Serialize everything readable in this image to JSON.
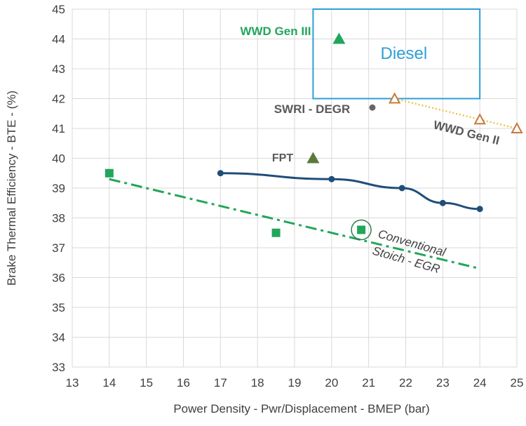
{
  "chart_data": {
    "type": "scatter",
    "xlabel": "Power Density - Pwr/Displacement - BMEP (bar)",
    "ylabel": "Brake Thermal Efficiency - BTE - (%)",
    "xlim": [
      13,
      25
    ],
    "ylim": [
      33,
      45
    ],
    "x_ticks": [
      "13",
      "14",
      "15",
      "16",
      "17",
      "18",
      "19",
      "20",
      "21",
      "22",
      "23",
      "24",
      "25"
    ],
    "y_ticks": [
      "33",
      "34",
      "35",
      "36",
      "37",
      "38",
      "39",
      "40",
      "41",
      "42",
      "43",
      "44",
      "45"
    ],
    "grid": "both",
    "diesel_box": {
      "label": "Diesel",
      "x_range": [
        19.5,
        24
      ],
      "y_range": [
        42,
        45
      ],
      "color": "#2e9fd6"
    },
    "series": [
      {
        "id": "curve",
        "marker": "circle",
        "color": "#1f4e79",
        "line": "solid",
        "points": [
          [
            17,
            39.5
          ],
          [
            20,
            39.3
          ],
          [
            21.9,
            39.0
          ],
          [
            23,
            38.5
          ],
          [
            24,
            38.3
          ]
        ]
      },
      {
        "id": "stoich",
        "marker": "square",
        "color": "#22a65a",
        "line": "none",
        "points": [
          [
            14,
            39.5
          ],
          [
            18.5,
            37.5
          ],
          [
            20.8,
            37.6
          ]
        ]
      },
      {
        "id": "wwd2",
        "marker": "triangle-open",
        "color": "#c8793c",
        "line": "dotted",
        "line_color": "#f0c24a",
        "points": [
          [
            21.7,
            42.0
          ],
          [
            24,
            41.3
          ],
          [
            25,
            41.0
          ]
        ]
      }
    ],
    "stoich_trendline": {
      "from": [
        14,
        39.3
      ],
      "to": [
        24,
        36.3
      ],
      "color": "#22a65a"
    },
    "circled_point": [
      20.8,
      37.6
    ],
    "single_points": [
      {
        "id": "wwd3",
        "x": 20.2,
        "y": 44.0,
        "marker": "triangle",
        "color": "#22a65a"
      },
      {
        "id": "swri",
        "x": 21.1,
        "y": 41.7,
        "marker": "circle",
        "color": "#666666"
      },
      {
        "id": "fpt",
        "x": 19.5,
        "y": 40.0,
        "marker": "triangle",
        "color": "#5a7a3a"
      }
    ],
    "annotations": {
      "wwd3": {
        "text": "WWD Gen III",
        "color": "#22a65a"
      },
      "swri": {
        "text": "SWRI - DEGR",
        "color": "#595959"
      },
      "fpt": {
        "text": "FPT",
        "color": "#595959"
      },
      "wwd2": {
        "text": "WWD Gen II",
        "color": "#595959"
      },
      "conventional": {
        "text": "Conventional",
        "color": "#404040"
      },
      "stoich": {
        "text": "Stoich - EGR",
        "color": "#404040"
      }
    }
  }
}
